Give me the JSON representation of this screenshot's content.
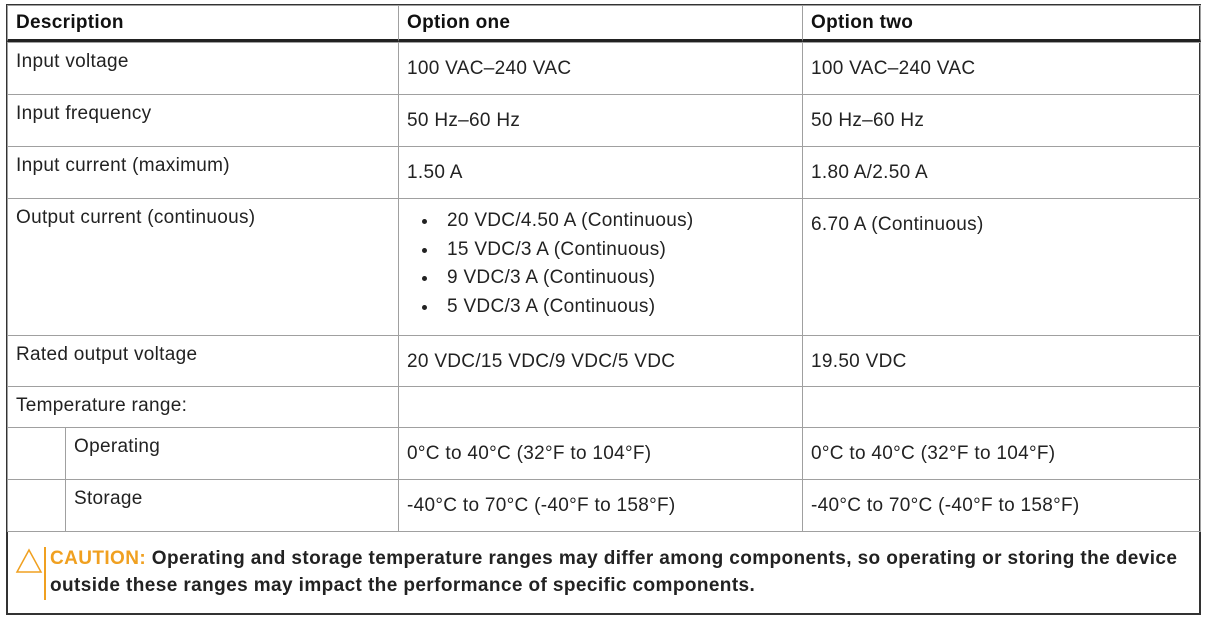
{
  "table": {
    "header": [
      "Description",
      "Option one",
      "Option two"
    ],
    "rows": [
      [
        "Input voltage",
        "100 VAC–240 VAC",
        "100 VAC–240 VAC"
      ],
      [
        "Input frequency",
        "50 Hz–60 Hz",
        "50 Hz–60 Hz"
      ],
      [
        "Input current (maximum)",
        "1.50 A",
        "1.80 A/2.50 A"
      ],
      [
        "Output current (continuous)",
        [
          "20 VDC/4.50 A (Continuous)",
          "15 VDC/3 A (Continuous)",
          "9 VDC/3 A (Continuous)",
          "5 VDC/3 A (Continuous)"
        ],
        "6.70 A (Continuous)"
      ],
      [
        "Rated output voltage",
        "20 VDC/15 VDC/9 VDC/5 VDC",
        "19.50 VDC"
      ],
      [
        "Temperature range:"
      ]
    ],
    "subrows": [
      [
        "Operating",
        "0°C to 40°C (32°F to 104°F)",
        "0°C to 40°C (32°F to 104°F)"
      ],
      [
        "Storage",
        "-40°C to 70°C (-40°F to 158°F)",
        "-40°C to 70°C (-40°F to 158°F)"
      ]
    ]
  },
  "caution": {
    "label": "CAUTION:",
    "text": "Operating and storage temperature ranges may differ among components, so operating or storing the device outside these ranges may impact the performance of specific components."
  }
}
